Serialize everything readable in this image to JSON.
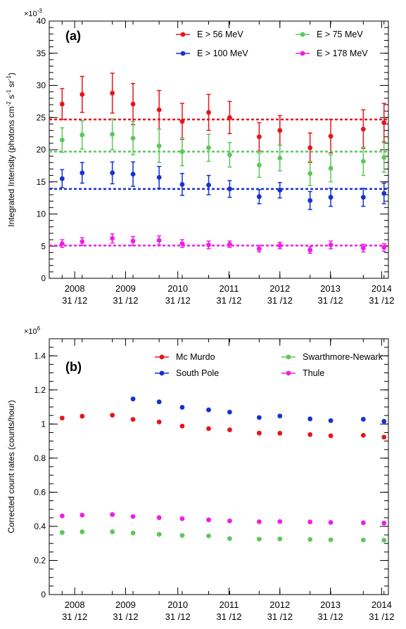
{
  "chart_data": [
    {
      "type": "scatter",
      "panel_label": "(a)",
      "ylabel_main": "Integrated Intensity (photons cm",
      "ylabel_sup1": "-2",
      "ylabel_mid1": " s",
      "ylabel_sup2": "-1",
      "ylabel_mid2": " sr",
      "ylabel_sup3": "-1",
      "ylabel_end": ")",
      "multiplier": "×10",
      "multiplier_exp": "-3",
      "ylim": [
        0,
        40
      ],
      "yticks": [
        "0",
        "5",
        "10",
        "15",
        "20",
        "25",
        "30",
        "35",
        "40"
      ],
      "xticks": [
        {
          "year": "2008",
          "date": "31 /12"
        },
        {
          "year": "2009",
          "date": "31 /12"
        },
        {
          "year": "2010",
          "date": "31 /12"
        },
        {
          "year": "2011",
          "date": "31 /12"
        },
        {
          "year": "2012",
          "date": "31 /12"
        },
        {
          "year": "2013",
          "date": "31 /12"
        },
        {
          "year": "2014",
          "date": "31 /12"
        }
      ],
      "grid": false,
      "legend_position": "top",
      "series": [
        {
          "name": "E >  56 MeV",
          "color": "#e8141c",
          "mean": 24.7,
          "y": [
            27.1,
            28.6,
            28.8,
            27.1,
            26.2,
            24.4,
            25.8,
            25.0,
            22.0,
            23.0,
            20.3,
            22.1,
            23.2,
            24.2
          ],
          "err": [
            2.4,
            2.8,
            3.1,
            3.2,
            3.0,
            2.8,
            2.8,
            2.5,
            2.2,
            2.3,
            2.3,
            2.6,
            3.0,
            3.0
          ]
        },
        {
          "name": "E >  75 MeV",
          "color": "#5bc85b",
          "mean": 19.7,
          "y": [
            21.5,
            22.3,
            22.4,
            21.8,
            20.6,
            19.7,
            20.3,
            19.2,
            17.6,
            18.7,
            16.3,
            17.1,
            18.2,
            18.8
          ],
          "err": [
            1.9,
            2.2,
            2.4,
            2.6,
            2.6,
            2.2,
            2.1,
            1.9,
            1.9,
            2.0,
            1.9,
            2.1,
            2.2,
            2.3
          ]
        },
        {
          "name": "E > 100 MeV",
          "color": "#1432d2",
          "mean": 13.9,
          "y": [
            15.5,
            16.4,
            16.4,
            16.2,
            15.7,
            14.6,
            14.5,
            13.9,
            12.7,
            13.7,
            12.1,
            12.6,
            12.6,
            13.2
          ],
          "err": [
            1.4,
            1.6,
            1.7,
            1.9,
            1.7,
            1.7,
            1.5,
            1.3,
            1.1,
            1.2,
            1.4,
            1.4,
            1.4,
            1.6
          ]
        },
        {
          "name": "E > 178 MeV",
          "color": "#ee1ee6",
          "mean": 5.1,
          "y": [
            5.4,
            5.7,
            6.2,
            5.8,
            5.9,
            5.4,
            5.2,
            5.3,
            4.6,
            5.1,
            4.4,
            5.2,
            4.7,
            4.8
          ],
          "err": [
            0.6,
            0.6,
            0.7,
            0.7,
            0.7,
            0.6,
            0.6,
            0.5,
            0.5,
            0.5,
            0.5,
            0.6,
            0.6,
            0.6
          ]
        }
      ]
    },
    {
      "type": "scatter",
      "panel_label": "(b)",
      "ylabel": "Corrected count rates (counts/hour)",
      "multiplier": "×10",
      "multiplier_exp": "6",
      "ylim": [
        0,
        1.5
      ],
      "yticks": [
        "0",
        "0.2",
        "0.4",
        "0.6",
        "0.8",
        "1",
        "1.2",
        "1.4"
      ],
      "xticks": [
        {
          "year": "2008",
          "date": "31 /12"
        },
        {
          "year": "2009",
          "date": "31 /12"
        },
        {
          "year": "2010",
          "date": "31 /12"
        },
        {
          "year": "2011",
          "date": "31 /12"
        },
        {
          "year": "2012",
          "date": "31 /12"
        },
        {
          "year": "2013",
          "date": "31 /12"
        },
        {
          "year": "2014",
          "date": "31 /12"
        }
      ],
      "grid": false,
      "legend_position": "top",
      "series": [
        {
          "name": "Mc Murdo",
          "color": "#e8141c",
          "y": [
            1.035,
            1.046,
            1.052,
            1.027,
            1.012,
            0.988,
            0.973,
            0.966,
            0.947,
            0.946,
            0.938,
            0.931,
            0.934,
            0.923
          ]
        },
        {
          "name": "Swarthmore-Newark",
          "color": "#5bc85b",
          "y": [
            0.364,
            0.368,
            0.368,
            0.361,
            0.353,
            0.347,
            0.344,
            0.328,
            0.325,
            0.326,
            0.323,
            0.321,
            0.32,
            0.319
          ]
        },
        {
          "name": "South Pole",
          "color": "#1432d2",
          "y": [
            null,
            null,
            null,
            1.147,
            1.13,
            1.098,
            1.083,
            1.07,
            1.038,
            1.047,
            1.03,
            1.02,
            1.028,
            1.016
          ]
        },
        {
          "name": "Thule",
          "color": "#ee1ee6",
          "y": [
            0.461,
            0.466,
            0.469,
            0.458,
            0.451,
            0.445,
            0.438,
            0.432,
            0.427,
            0.428,
            0.426,
            0.423,
            0.421,
            0.419
          ]
        }
      ]
    }
  ]
}
